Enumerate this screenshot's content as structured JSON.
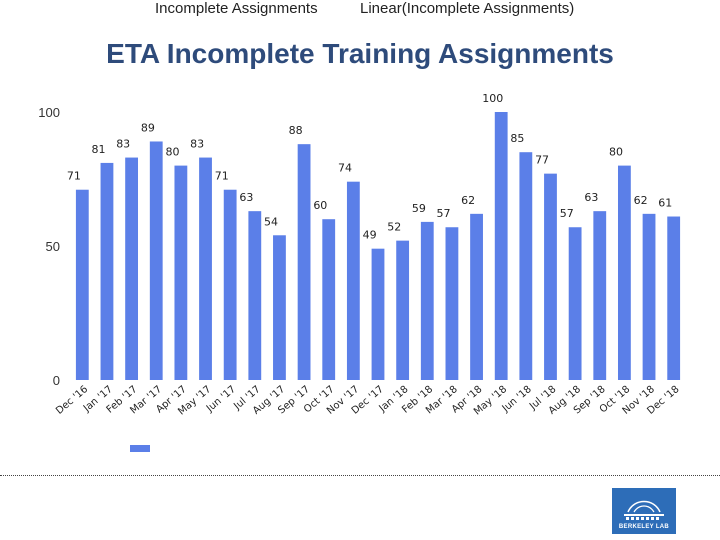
{
  "title": "ETA Incomplete Training Assignments",
  "chart_data": {
    "type": "bar",
    "title": "ETA Incomplete Training Assignments",
    "categories": [
      "Dec '16",
      "Jan '17",
      "Feb '17",
      "Mar '17",
      "Apr '17",
      "May '17",
      "Jun '17",
      "Jul '17",
      "Aug '17",
      "Sep '17",
      "Oct '17",
      "Nov '17",
      "Dec '17",
      "Jan '18",
      "Feb '18",
      "Mar '18",
      "Apr '18",
      "May '18",
      "Jun '18",
      "Jul '18",
      "Aug '18",
      "Sep '18",
      "Oct '18",
      "Nov '18",
      "Dec '18"
    ],
    "values": [
      71,
      81,
      83,
      89,
      80,
      83,
      71,
      63,
      54,
      88,
      60,
      74,
      49,
      52,
      59,
      57,
      62,
      100,
      85,
      77,
      57,
      63,
      80,
      62,
      61
    ],
    "yticks": [
      0,
      50,
      100
    ],
    "ylim": [
      0,
      100
    ],
    "series_name": "Incomplete Assignments",
    "trendline_name": "Linear(Incomplete Assignments)",
    "bar_color": "#5b7fe8"
  },
  "legend": {
    "series_label": "Incomplete Assignments",
    "trend_label": "Linear(Incomplete Assignments)"
  },
  "logo": {
    "text": "BERKELEY LAB"
  }
}
